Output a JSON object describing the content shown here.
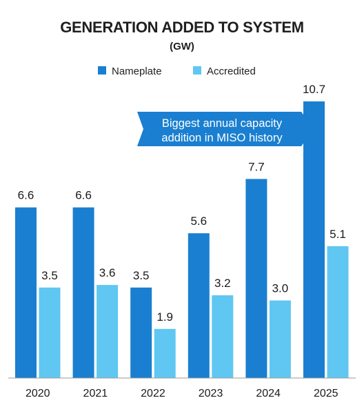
{
  "chart_data": {
    "type": "bar",
    "title": "GENERATION ADDED TO SYSTEM",
    "subtitle": "(GW)",
    "categories": [
      "2020",
      "2021",
      "2022",
      "2023",
      "2024",
      "2025"
    ],
    "series": [
      {
        "name": "Nameplate",
        "color": "#1a7fd0",
        "values": [
          6.6,
          6.6,
          3.5,
          5.6,
          7.7,
          10.7
        ],
        "labels": [
          "6.6",
          "6.6",
          "3.5",
          "5.6",
          "7.7",
          "10.7"
        ]
      },
      {
        "name": "Accredited",
        "color": "#5fc7f1",
        "values": [
          3.5,
          3.6,
          1.9,
          3.2,
          3.0,
          5.1
        ],
        "labels": [
          "3.5",
          "3.6",
          "1.9",
          "3.2",
          "3.0",
          "5.1"
        ]
      }
    ],
    "ylim": [
      0,
      10.7
    ],
    "grid": false,
    "legend_position": "top-center",
    "annotation": {
      "line1": "Biggest annual capacity",
      "line2": "addition in MISO history",
      "color": "#1a7fd0"
    }
  }
}
